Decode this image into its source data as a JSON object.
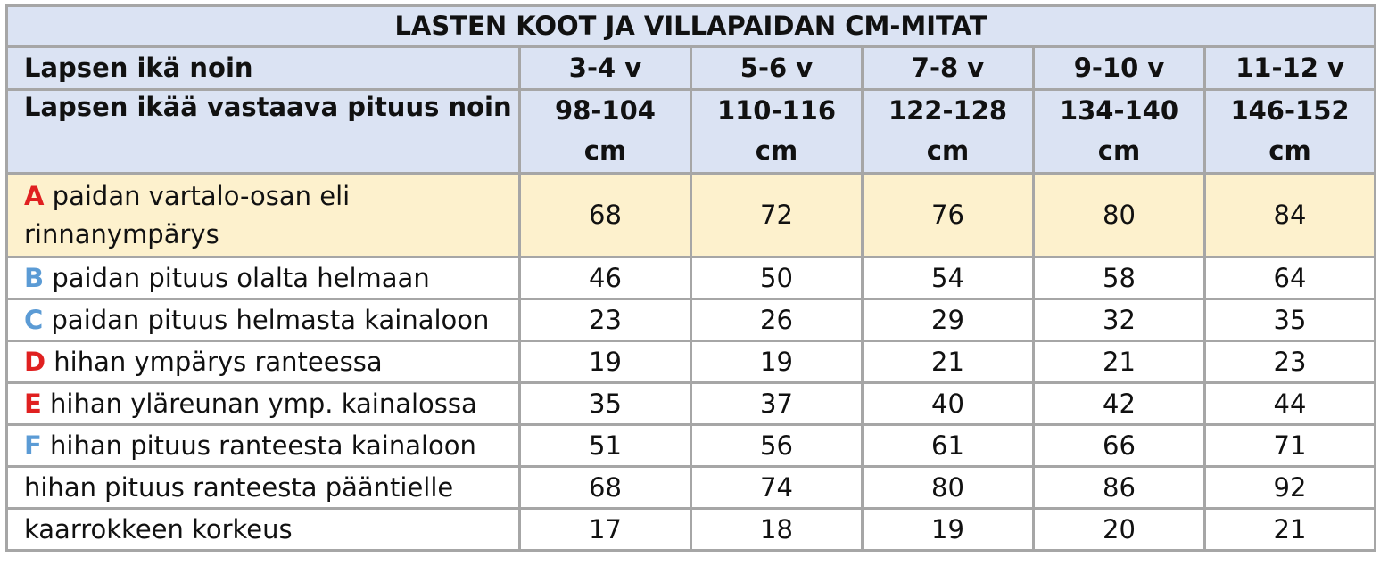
{
  "title": "LASTEN KOOT JA VILLAPAIDAN CM-MITAT",
  "age_row": {
    "label": "Lapsen ikä noin",
    "values": [
      "3-4 v",
      "5-6 v",
      "7-8 v",
      "9-10 v",
      "11-12 v"
    ]
  },
  "height_row": {
    "label": "Lapsen ikää vastaava pituus noin",
    "values": [
      {
        "range": "98-104",
        "unit": "cm"
      },
      {
        "range": "110-116",
        "unit": "cm"
      },
      {
        "range": "122-128",
        "unit": "cm"
      },
      {
        "range": "134-140",
        "unit": "cm"
      },
      {
        "range": "146-152",
        "unit": "cm"
      }
    ]
  },
  "rows": [
    {
      "letter": "A",
      "letter_color": "#e02020",
      "label": "paidan vartalo-osan eli rinnanympärys",
      "highlight": true,
      "values": [
        "68",
        "72",
        "76",
        "80",
        "84"
      ]
    },
    {
      "letter": "B",
      "letter_color": "#5b9bd5",
      "label": "paidan pituus olalta helmaan",
      "values": [
        "46",
        "50",
        "54",
        "58",
        "64"
      ]
    },
    {
      "letter": "C",
      "letter_color": "#5b9bd5",
      "label": "paidan pituus helmasta kainaloon",
      "values": [
        "23",
        "26",
        "29",
        "32",
        "35"
      ]
    },
    {
      "letter": "D",
      "letter_color": "#e02020",
      "label": "hihan ympärys ranteessa",
      "values": [
        "19",
        "19",
        "21",
        "21",
        "23"
      ]
    },
    {
      "letter": "E",
      "letter_color": "#e02020",
      "label": "hihan yläreunan ymp. kainalossa",
      "values": [
        "35",
        "37",
        "40",
        "42",
        "44"
      ]
    },
    {
      "letter": "F",
      "letter_color": "#5b9bd5",
      "label": "hihan pituus ranteesta kainaloon",
      "values": [
        "51",
        "56",
        "61",
        "66",
        "71"
      ]
    },
    {
      "letter": "",
      "label": "hihan pituus ranteesta pääntielle",
      "values": [
        "68",
        "74",
        "80",
        "86",
        "92"
      ]
    },
    {
      "letter": "",
      "label": "kaarrokkeen korkeus",
      "values": [
        "17",
        "18",
        "19",
        "20",
        "21"
      ]
    }
  ],
  "colors": {
    "header_bg": "#dbe3f3",
    "highlight_bg": "#fdf1cd",
    "border": "#a6a6a6",
    "letter_red": "#e02020",
    "letter_blue": "#5b9bd5"
  }
}
